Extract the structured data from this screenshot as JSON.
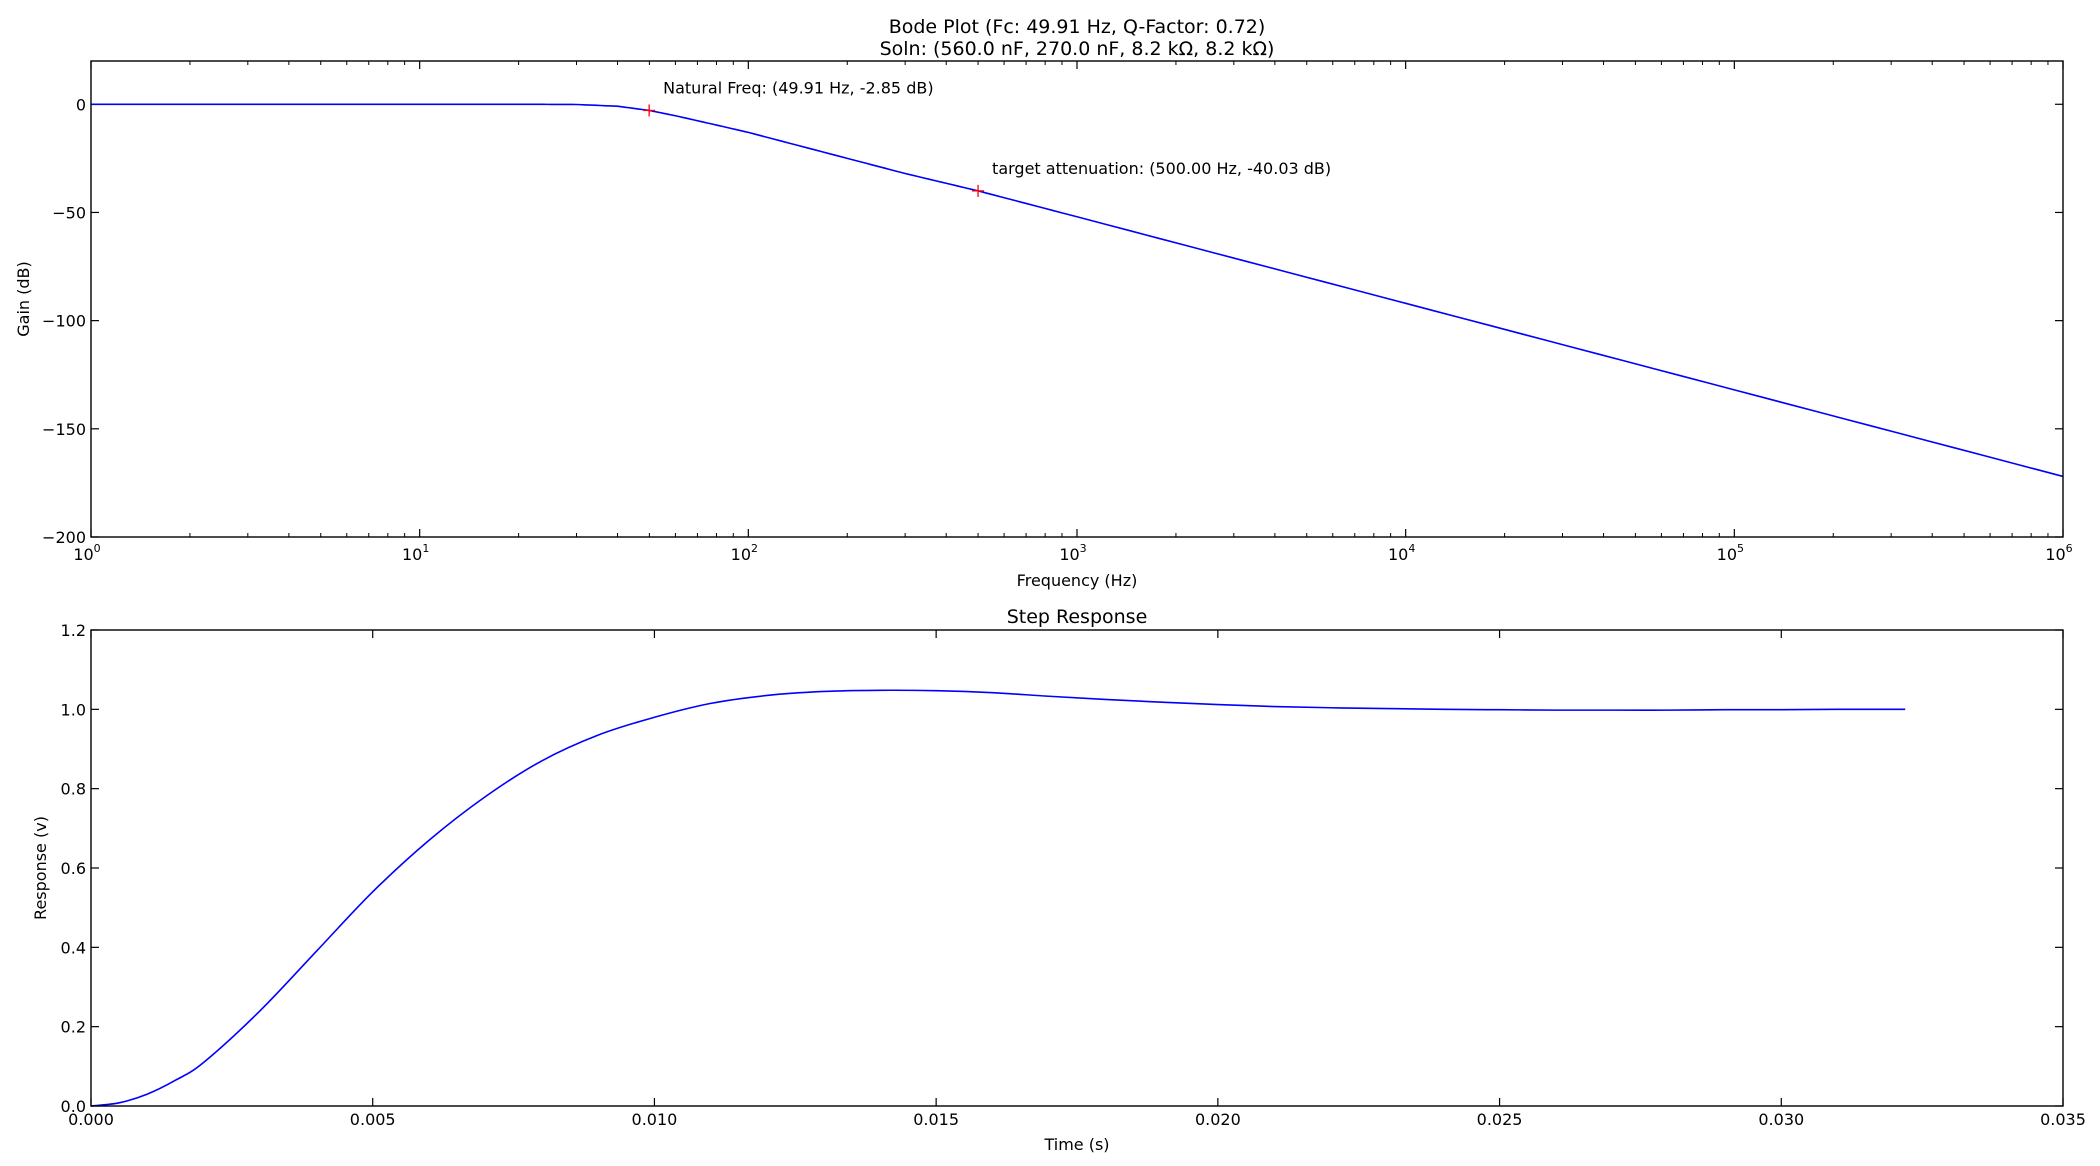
{
  "chart_data": [
    {
      "type": "line",
      "title": "Bode Plot (Fc: 49.91 Hz, Q-Factor: 0.72)",
      "subtitle": "Soln: (560.0 nF, 270.0 nF, 8.2 kΩ, 8.2 kΩ)",
      "xlabel": "Frequency (Hz)",
      "ylabel": "Gain (dB)",
      "xscale": "log",
      "xlim": [
        1,
        1000000
      ],
      "ylim": [
        -200,
        20
      ],
      "grid": false,
      "x_ticks": [
        {
          "base": "10",
          "exp": "0",
          "value": 1
        },
        {
          "base": "10",
          "exp": "1",
          "value": 10
        },
        {
          "base": "10",
          "exp": "2",
          "value": 100
        },
        {
          "base": "10",
          "exp": "3",
          "value": 1000
        },
        {
          "base": "10",
          "exp": "4",
          "value": 10000
        },
        {
          "base": "10",
          "exp": "5",
          "value": 100000
        },
        {
          "base": "10",
          "exp": "6",
          "value": 1000000
        }
      ],
      "y_ticks": [
        {
          "label": "0",
          "value": 0
        },
        {
          "label": "−50",
          "value": -50
        },
        {
          "label": "−100",
          "value": -100
        },
        {
          "label": "−150",
          "value": -150
        },
        {
          "label": "−200",
          "value": -200
        }
      ],
      "series": [
        {
          "color": "#0000ff",
          "x": [
            1,
            2,
            5,
            10,
            20,
            30,
            40,
            49.91,
            60,
            80,
            100,
            200,
            300,
            500,
            1000,
            10000,
            100000,
            1000000
          ],
          "y": [
            0,
            0,
            0,
            0,
            0,
            -0.1,
            -0.9,
            -2.85,
            -5.3,
            -9.6,
            -13,
            -25,
            -32,
            -40.03,
            -52,
            -92,
            -132,
            -172
          ]
        }
      ],
      "markers": [
        {
          "x": 49.91,
          "y": -2.85,
          "color": "#ff0000",
          "label": "Natural Freq: (49.91 Hz, -2.85 dB)"
        },
        {
          "x": 500,
          "y": -40.03,
          "color": "#ff0000",
          "label": "target attenuation: (500.00 Hz, -40.03 dB)"
        }
      ]
    },
    {
      "type": "line",
      "title": "Step Response",
      "xlabel": "Time (s)",
      "ylabel": "Response (v)",
      "xlim": [
        0,
        0.035
      ],
      "ylim": [
        0,
        1.2
      ],
      "grid": false,
      "x_ticks": [
        {
          "label": "0.000",
          "value": 0
        },
        {
          "label": "0.005",
          "value": 0.005
        },
        {
          "label": "0.010",
          "value": 0.01
        },
        {
          "label": "0.015",
          "value": 0.015
        },
        {
          "label": "0.020",
          "value": 0.02
        },
        {
          "label": "0.025",
          "value": 0.025
        },
        {
          "label": "0.030",
          "value": 0.03
        },
        {
          "label": "0.035",
          "value": 0.035
        }
      ],
      "y_ticks": [
        {
          "label": "0.0",
          "value": 0
        },
        {
          "label": "0.2",
          "value": 0.2
        },
        {
          "label": "0.4",
          "value": 0.4
        },
        {
          "label": "0.6",
          "value": 0.6
        },
        {
          "label": "0.8",
          "value": 0.8
        },
        {
          "label": "1.0",
          "value": 1
        },
        {
          "label": "1.2",
          "value": 1.2
        }
      ],
      "series": [
        {
          "color": "#0000ff",
          "x": [
            0,
            0.0005,
            0.001,
            0.0015,
            0.002,
            0.003,
            0.004,
            0.005,
            0.006,
            0.007,
            0.008,
            0.009,
            0.01,
            0.011,
            0.012,
            0.013,
            0.014,
            0.015,
            0.016,
            0.017,
            0.018,
            0.019,
            0.02,
            0.021,
            0.022,
            0.023,
            0.024,
            0.025,
            0.026,
            0.027,
            0.028,
            0.029,
            0.03,
            0.031,
            0.0322
          ],
          "y": [
            0,
            0.008,
            0.03,
            0.065,
            0.11,
            0.24,
            0.39,
            0.54,
            0.67,
            0.78,
            0.87,
            0.935,
            0.98,
            1.015,
            1.035,
            1.045,
            1.048,
            1.047,
            1.042,
            1.033,
            1.025,
            1.018,
            1.012,
            1.007,
            1.004,
            1.002,
            1.0,
            0.999,
            0.998,
            0.998,
            0.998,
            0.999,
            0.999,
            1.0,
            1.0
          ]
        }
      ]
    }
  ]
}
